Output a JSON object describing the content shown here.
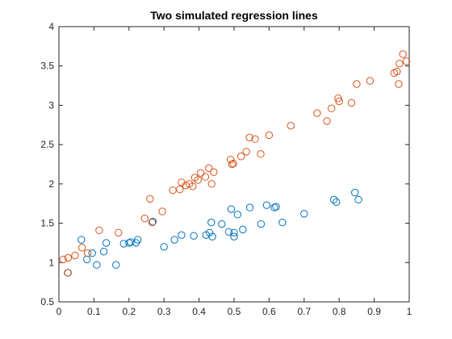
{
  "chart_data": {
    "type": "scatter",
    "title": "Two simulated regression lines",
    "xlabel": "",
    "ylabel": "",
    "xlim": [
      0,
      1
    ],
    "ylim": [
      0.5,
      4
    ],
    "xticks": [
      0,
      0.1,
      0.2,
      0.3,
      0.4,
      0.5,
      0.6,
      0.7,
      0.8,
      0.9,
      1
    ],
    "xtick_labels": [
      "0",
      "0.1",
      "0.2",
      "0.3",
      "0.4",
      "0.5",
      "0.6",
      "0.7",
      "0.8",
      "0.9",
      "1"
    ],
    "yticks": [
      0.5,
      1,
      1.5,
      2,
      2.5,
      3,
      3.5,
      4
    ],
    "ytick_labels": [
      "0.5",
      "1",
      "1.5",
      "2",
      "2.5",
      "3",
      "3.5",
      "4"
    ],
    "grid": false,
    "legend": false,
    "series": [
      {
        "color": "#0072BD",
        "marker": "circle-open",
        "points": [
          [
            0.025,
            0.87
          ],
          [
            0.064,
            1.29
          ],
          [
            0.08,
            1.04
          ],
          [
            0.095,
            1.12
          ],
          [
            0.108,
            0.97
          ],
          [
            0.128,
            1.14
          ],
          [
            0.135,
            1.25
          ],
          [
            0.163,
            0.97
          ],
          [
            0.185,
            1.24
          ],
          [
            0.2,
            1.25
          ],
          [
            0.205,
            1.26
          ],
          [
            0.22,
            1.25
          ],
          [
            0.225,
            1.29
          ],
          [
            0.268,
            1.52
          ],
          [
            0.3,
            1.2
          ],
          [
            0.33,
            1.29
          ],
          [
            0.35,
            1.35
          ],
          [
            0.385,
            1.34
          ],
          [
            0.42,
            1.35
          ],
          [
            0.43,
            1.38
          ],
          [
            0.435,
            1.51
          ],
          [
            0.438,
            1.33
          ],
          [
            0.465,
            1.49
          ],
          [
            0.485,
            1.39
          ],
          [
            0.492,
            1.68
          ],
          [
            0.5,
            1.33
          ],
          [
            0.5,
            1.38
          ],
          [
            0.51,
            1.61
          ],
          [
            0.525,
            1.42
          ],
          [
            0.545,
            1.7
          ],
          [
            0.577,
            1.49
          ],
          [
            0.593,
            1.73
          ],
          [
            0.615,
            1.7
          ],
          [
            0.62,
            1.71
          ],
          [
            0.638,
            1.51
          ],
          [
            0.7,
            1.62
          ],
          [
            0.785,
            1.8
          ],
          [
            0.792,
            1.77
          ],
          [
            0.845,
            1.89
          ],
          [
            0.855,
            1.8
          ]
        ]
      },
      {
        "color": "#D95319",
        "marker": "circle-open",
        "points": [
          [
            0.012,
            1.04
          ],
          [
            0.026,
            1.06
          ],
          [
            0.026,
            0.87
          ],
          [
            0.046,
            1.09
          ],
          [
            0.066,
            1.19
          ],
          [
            0.082,
            1.12
          ],
          [
            0.115,
            1.41
          ],
          [
            0.17,
            1.38
          ],
          [
            0.245,
            1.56
          ],
          [
            0.26,
            1.81
          ],
          [
            0.266,
            1.51
          ],
          [
            0.295,
            1.65
          ],
          [
            0.325,
            1.92
          ],
          [
            0.345,
            1.93
          ],
          [
            0.35,
            2.02
          ],
          [
            0.362,
            1.98
          ],
          [
            0.372,
            2.0
          ],
          [
            0.382,
            1.97
          ],
          [
            0.388,
            2.08
          ],
          [
            0.397,
            2.05
          ],
          [
            0.405,
            2.14
          ],
          [
            0.418,
            2.09
          ],
          [
            0.428,
            2.2
          ],
          [
            0.436,
            2.0
          ],
          [
            0.442,
            2.15
          ],
          [
            0.49,
            2.31
          ],
          [
            0.494,
            2.25
          ],
          [
            0.498,
            2.26
          ],
          [
            0.52,
            2.35
          ],
          [
            0.535,
            2.41
          ],
          [
            0.544,
            2.59
          ],
          [
            0.56,
            2.57
          ],
          [
            0.576,
            2.38
          ],
          [
            0.6,
            2.62
          ],
          [
            0.662,
            2.74
          ],
          [
            0.737,
            2.9
          ],
          [
            0.765,
            2.8
          ],
          [
            0.778,
            2.96
          ],
          [
            0.797,
            3.09
          ],
          [
            0.8,
            3.05
          ],
          [
            0.835,
            3.03
          ],
          [
            0.85,
            3.27
          ],
          [
            0.888,
            3.31
          ],
          [
            0.957,
            3.41
          ],
          [
            0.965,
            3.43
          ],
          [
            0.97,
            3.27
          ],
          [
            0.972,
            3.53
          ],
          [
            0.982,
            3.65
          ],
          [
            0.992,
            3.56
          ]
        ]
      }
    ]
  }
}
